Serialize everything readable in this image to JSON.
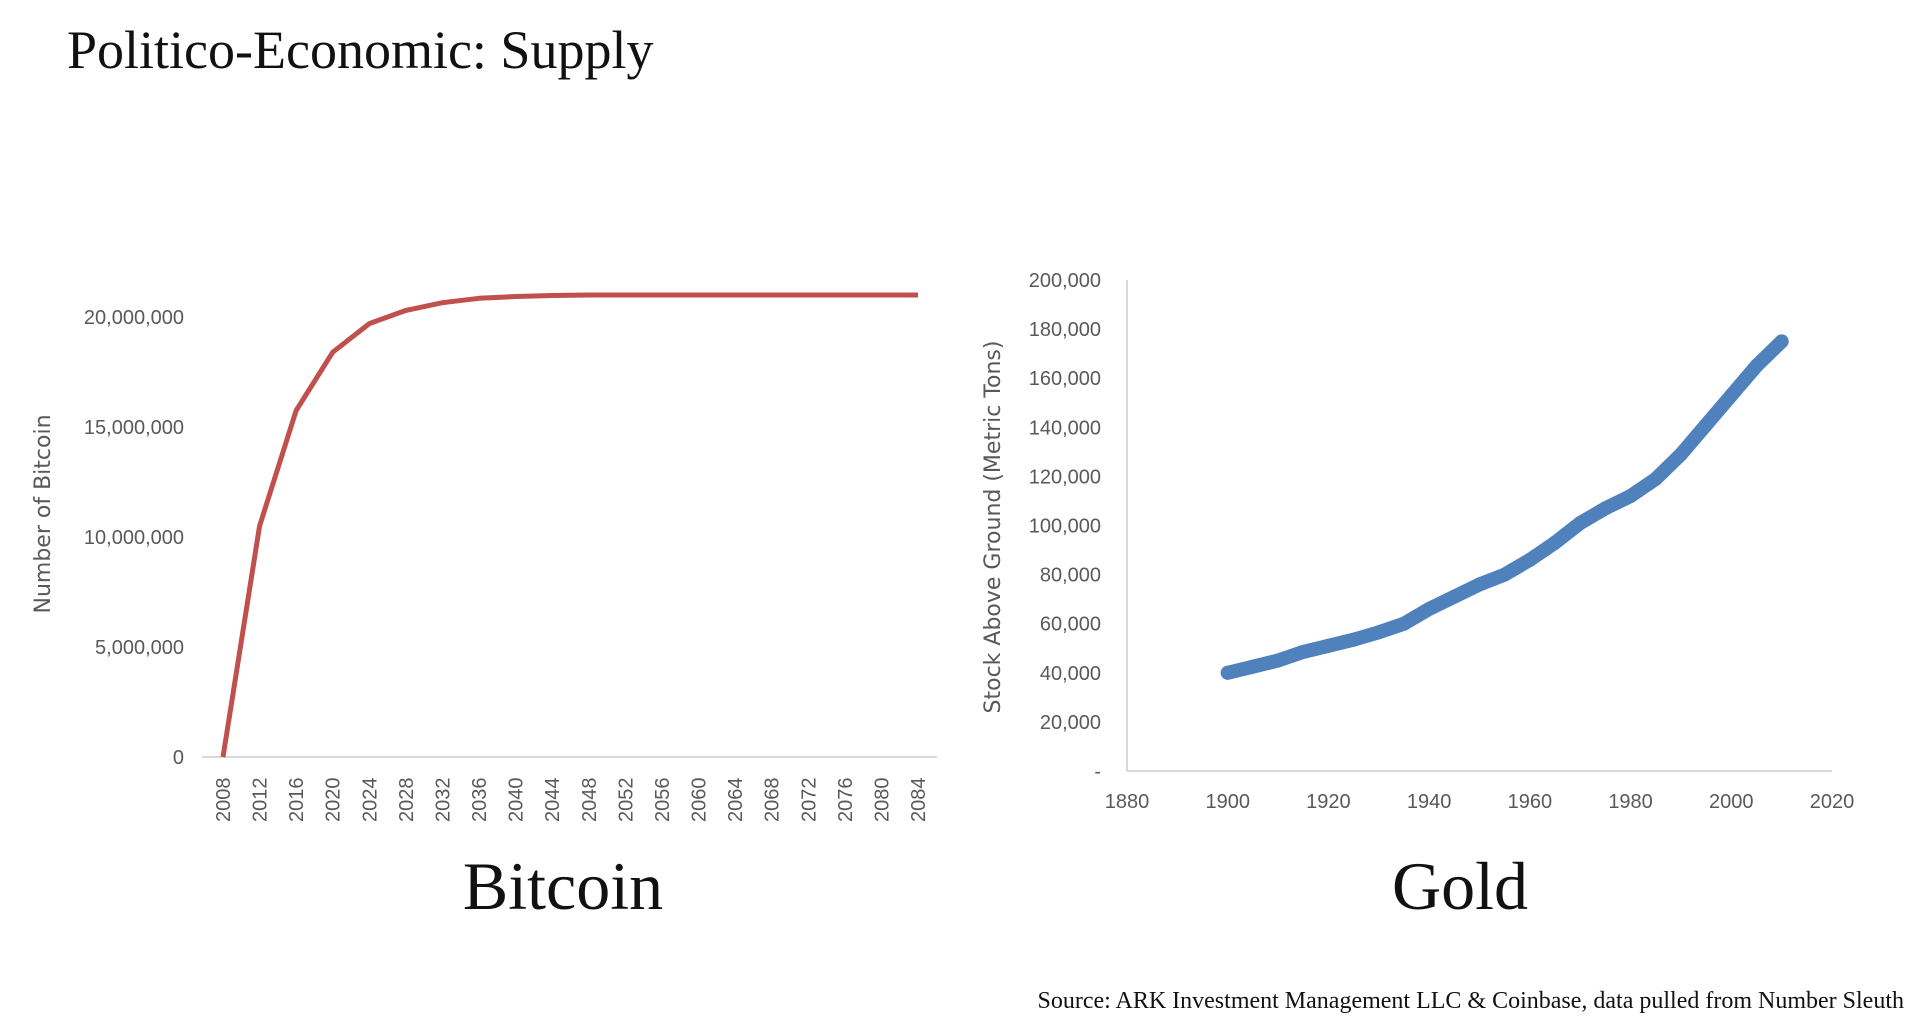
{
  "slide": {
    "title": "Politico-Economic: Supply",
    "source": "Source: ARK Investment Management LLC & Coinbase, data pulled  from Number Sleuth"
  },
  "chart_data": [
    {
      "type": "line",
      "caption": "Bitcoin",
      "ylabel": "Number of Bitcoin",
      "xlabel": "",
      "color": "#C0504D",
      "ylim": [
        0,
        21000000
      ],
      "yticks": [
        0,
        5000000,
        10000000,
        15000000,
        20000000
      ],
      "ytick_labels": [
        "0",
        "5,000,000",
        "10,000,000",
        "15,000,000",
        "20,000,000"
      ],
      "categories": [
        "2008",
        "2012",
        "2016",
        "2020",
        "2024",
        "2028",
        "2032",
        "2036",
        "2040",
        "2044",
        "2048",
        "2052",
        "2056",
        "2060",
        "2064",
        "2068",
        "2072",
        "2076",
        "2080",
        "2084"
      ],
      "values": [
        0,
        10500000,
        15750000,
        18400000,
        19700000,
        20300000,
        20650000,
        20850000,
        20930000,
        20980000,
        21000000,
        21000000,
        21000000,
        21000000,
        21000000,
        21000000,
        21000000,
        21000000,
        21000000,
        21000000
      ],
      "grid": false
    },
    {
      "type": "scatter",
      "caption": "Gold",
      "ylabel": "Stock Above Ground (Metric Tons)",
      "xlabel": "",
      "color": "#4F81BD",
      "xlim": [
        1880,
        2020
      ],
      "ylim": [
        0,
        200000
      ],
      "xticks": [
        1880,
        1900,
        1920,
        1940,
        1960,
        1980,
        2000,
        2020
      ],
      "xtick_labels": [
        "1880",
        "1900",
        "1920",
        "1940",
        "1960",
        "1980",
        "2000",
        "2020"
      ],
      "yticks": [
        0,
        20000,
        40000,
        60000,
        80000,
        100000,
        120000,
        140000,
        160000,
        180000,
        200000
      ],
      "ytick_labels": [
        "-",
        "20,000",
        "40,000",
        "60,000",
        "80,000",
        "100,000",
        "120,000",
        "140,000",
        "160,000",
        "180,000",
        "200,000"
      ],
      "x": [
        1900,
        1905,
        1910,
        1915,
        1920,
        1925,
        1930,
        1935,
        1940,
        1945,
        1950,
        1955,
        1960,
        1965,
        1970,
        1975,
        1980,
        1985,
        1990,
        1995,
        2000,
        2005,
        2010
      ],
      "y": [
        40000,
        42500,
        45000,
        48500,
        51000,
        53500,
        56500,
        60000,
        66000,
        71000,
        76000,
        80000,
        86000,
        93000,
        101000,
        107000,
        112000,
        119000,
        129000,
        141000,
        153000,
        165000,
        175000
      ],
      "grid": false
    }
  ]
}
